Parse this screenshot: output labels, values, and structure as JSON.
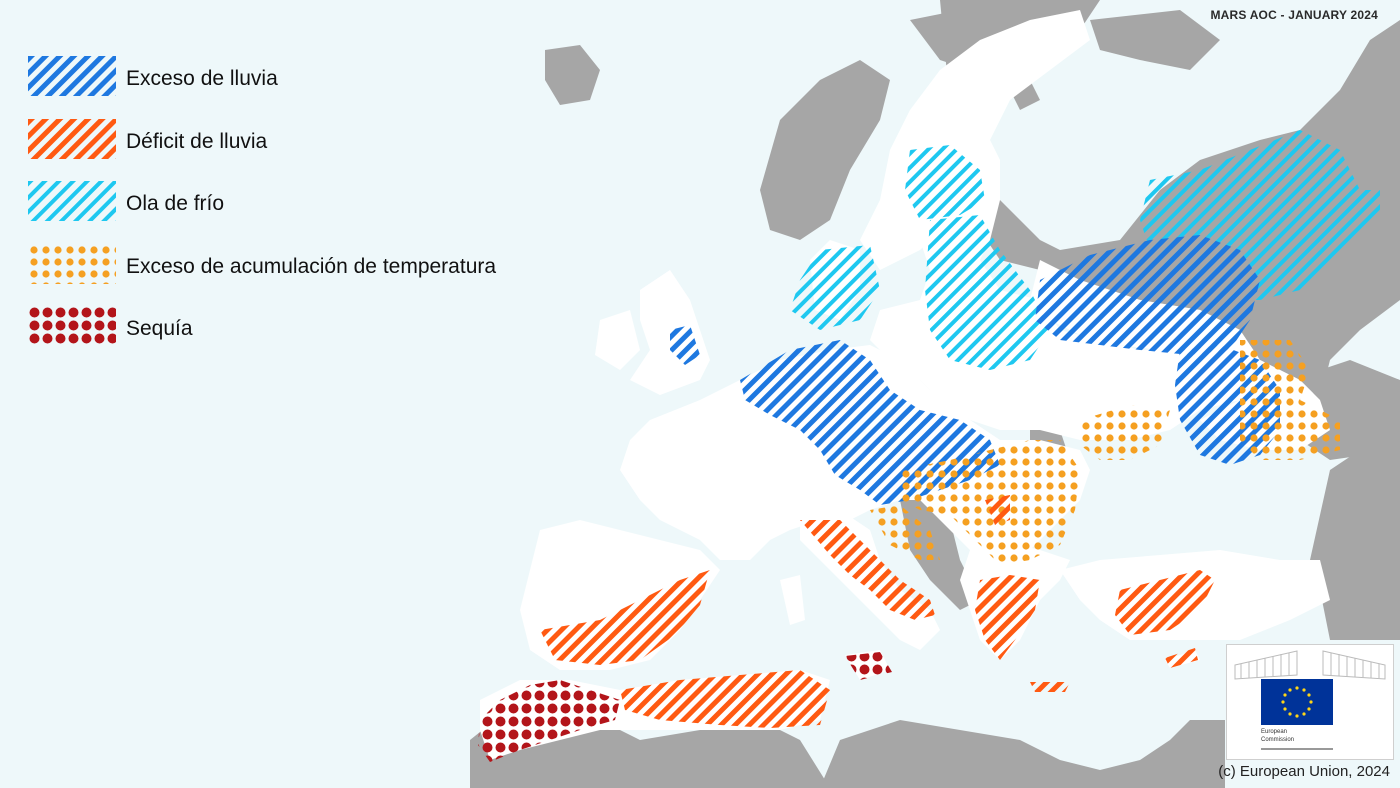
{
  "title": "MARS AOC - JANUARY 2024",
  "copyright": "(c) European Union, 2024",
  "legend": [
    {
      "label": "Exceso de lluvia",
      "pattern": "hatch",
      "color": "#1e78e0"
    },
    {
      "label": "Déficit de lluvia",
      "pattern": "hatch",
      "color": "#ff5a12"
    },
    {
      "label": "Ola de frío",
      "pattern": "hatch",
      "color": "#1ec8f0"
    },
    {
      "label": "Exceso de acumulación de temperatura",
      "pattern": "dots",
      "color": "#f5a021"
    },
    {
      "label": "Sequía",
      "pattern": "dots",
      "color": "#b3151a"
    }
  ],
  "logo": {
    "line1": "European",
    "line2": "Commission"
  },
  "colors": {
    "sea": "#eef8fa",
    "land_in_scope": "#ffffff",
    "land_out_of_scope": "#a6a6a6",
    "eu_blue": "#003399",
    "eu_star": "#ffd617"
  }
}
